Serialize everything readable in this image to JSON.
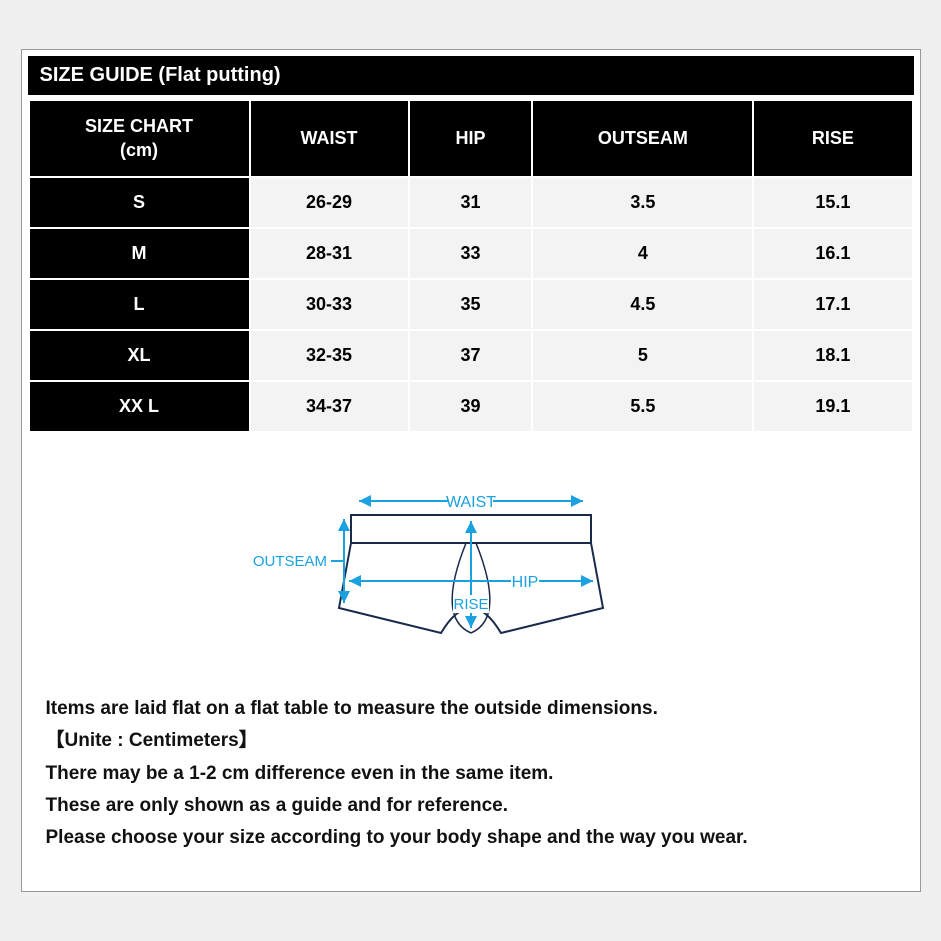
{
  "title": "SIZE GUIDE (Flat putting)",
  "table": {
    "headers": {
      "size": "SIZE CHART\n(cm)",
      "waist": "WAIST",
      "hip": "HIP",
      "outseam": "OUTSEAM",
      "rise": "RISE"
    },
    "rows": [
      {
        "size": "S",
        "waist": "26-29",
        "hip": "31",
        "outseam": "3.5",
        "rise": "15.1"
      },
      {
        "size": "M",
        "waist": "28-31",
        "hip": "33",
        "outseam": "4",
        "rise": "16.1"
      },
      {
        "size": "L",
        "waist": "30-33",
        "hip": "35",
        "outseam": "4.5",
        "rise": "17.1"
      },
      {
        "size": "XL",
        "waist": "32-35",
        "hip": "37",
        "outseam": "5",
        "rise": "18.1"
      },
      {
        "size": "XX L",
        "waist": "34-37",
        "hip": "39",
        "outseam": "5.5",
        "rise": "19.1"
      }
    ],
    "header_bg": "#000000",
    "header_fg": "#ffffff",
    "row_label_bg": "#000000",
    "row_label_fg": "#ffffff",
    "cell_bg": "#f3f3f3",
    "cell_fg": "#000000",
    "border_color": "#ffffff",
    "font_size": 18
  },
  "diagram": {
    "labels": {
      "waist": "WAIST",
      "hip": "HIP",
      "rise": "RISE",
      "outseam": "OUTSEAM"
    },
    "arrow_color": "#1aa1e0",
    "label_color": "#1aa1e0",
    "outline_color": "#1a2a4a",
    "bg_color": "#ffffff",
    "stroke_width": 2
  },
  "notes": {
    "lines": [
      "Items are laid flat on a flat table to measure the outside dimensions.",
      "【Unite : Centimeters】",
      "There may be a 1-2 cm difference even in the same item.",
      "These are only shown as a guide and for reference.",
      "Please choose your size according to your body shape and the way you wear."
    ],
    "font_size": 19,
    "color": "#111111"
  }
}
